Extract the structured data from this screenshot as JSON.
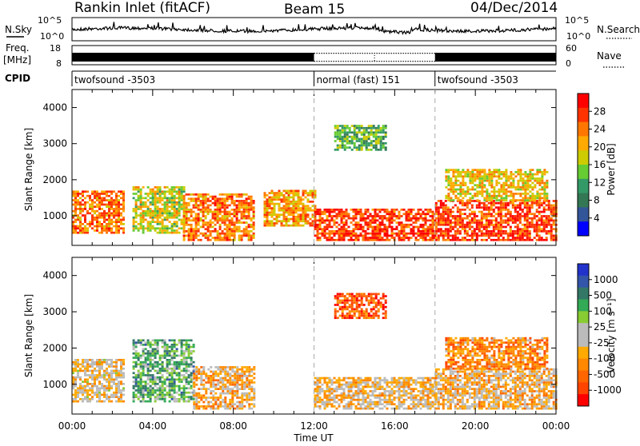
{
  "header": {
    "station": "Rankin Inlet (fitACF)",
    "beam": "Beam 15",
    "date": "04/Dec/2014"
  },
  "noise_panel": {
    "left_label": "N.Sky",
    "right_label": "N.Search",
    "left_ticks": [
      "10^5",
      "10^0"
    ],
    "right_ticks": [
      "10^5",
      "10^0"
    ]
  },
  "freq_panel": {
    "left_label_1": "Freq.",
    "left_label_2": "[MHz]",
    "left_ticks": [
      "18",
      "8"
    ],
    "right_label": "Nave",
    "right_ticks": [
      "60",
      "0"
    ]
  },
  "cpid_panel": {
    "label": "CPID",
    "segments": [
      {
        "label": "twofsound -3503",
        "start_hr": 0,
        "end_hr": 12
      },
      {
        "label": "normal (fast) 151",
        "start_hr": 12,
        "end_hr": 18
      },
      {
        "label": "twofsound -3503",
        "start_hr": 18,
        "end_hr": 24
      }
    ]
  },
  "power_panel": {
    "ylabel": "Slant Range [km]",
    "cbar_label": "Power [dB]",
    "cbar_ticks": [
      "28",
      "24",
      "20",
      "16",
      "12",
      "8",
      "4"
    ],
    "cbar_colors": [
      "#ff0000",
      "#ff3300",
      "#ff7700",
      "#ffaa00",
      "#cccc00",
      "#66cc33",
      "#339966",
      "#337755",
      "#335599",
      "#0000ff"
    ]
  },
  "velocity_panel": {
    "ylabel": "Slant Range [km]",
    "cbar_label": "Velocity [m s⁻¹]",
    "cbar_ticks": [
      "1000",
      "500",
      "100",
      "25",
      "-25",
      "-100",
      "-500",
      "-1000"
    ],
    "cbar_colors": [
      "#2233cc",
      "#3355aa",
      "#337766",
      "#33aa55",
      "#88cc33",
      "#bbbbbb",
      "#bbbbbb",
      "#ffaa00",
      "#ff8800",
      "#ff6600",
      "#ff4400",
      "#ff0000"
    ]
  },
  "axes": {
    "y_ticks": [
      "4000",
      "3000",
      "2000",
      "1000"
    ],
    "x_ticks": [
      "00:00",
      "04:00",
      "08:00",
      "12:00",
      "16:00",
      "20:00",
      "00:00"
    ],
    "xlabel": "Time UT"
  },
  "chart_data": {
    "type": "heatmap",
    "title": "Rankin Inlet (fitACF)",
    "subtitle": "Beam 15",
    "date": "04/Dec/2014",
    "xlabel": "Time UT",
    "ylabel": "Slant Range [km]",
    "xlim_hours": [
      0,
      24
    ],
    "ylim_km": [
      180,
      4500
    ],
    "grid": false,
    "panels": [
      {
        "name": "Power [dB]",
        "range": [
          0,
          30
        ],
        "regions": [
          {
            "t0": 0.0,
            "t1": 2.6,
            "r0": 500,
            "r1": 1700,
            "value": 24
          },
          {
            "t0": 3.0,
            "t1": 5.5,
            "r0": 500,
            "r1": 1800,
            "value": 18
          },
          {
            "t0": 5.5,
            "t1": 9.0,
            "r0": 300,
            "r1": 1600,
            "value": 24
          },
          {
            "t0": 9.5,
            "t1": 12.0,
            "r0": 700,
            "r1": 1700,
            "value": 22
          },
          {
            "t0": 12.0,
            "t1": 18.0,
            "r0": 300,
            "r1": 1200,
            "value": 27
          },
          {
            "t0": 13.0,
            "t1": 15.5,
            "r0": 2800,
            "r1": 3500,
            "value": 14
          },
          {
            "t0": 18.0,
            "t1": 24.0,
            "r0": 300,
            "r1": 1400,
            "value": 27
          },
          {
            "t0": 18.5,
            "t1": 23.5,
            "r0": 1400,
            "r1": 2300,
            "value": 20
          }
        ]
      },
      {
        "name": "Velocity [m s-1]",
        "range": [
          -1000,
          1000
        ],
        "regions": [
          {
            "t0": 0.0,
            "t1": 2.6,
            "r0": 500,
            "r1": 1700,
            "value": -150
          },
          {
            "t0": 3.0,
            "t1": 6.0,
            "r0": 500,
            "r1": 2200,
            "value": 400
          },
          {
            "t0": 6.0,
            "t1": 9.0,
            "r0": 300,
            "r1": 1500,
            "value": -300
          },
          {
            "t0": 12.0,
            "t1": 18.0,
            "r0": 300,
            "r1": 1200,
            "value": -200
          },
          {
            "t0": 13.0,
            "t1": 15.5,
            "r0": 2800,
            "r1": 3500,
            "value": -700
          },
          {
            "t0": 18.0,
            "t1": 24.0,
            "r0": 300,
            "r1": 1400,
            "value": -250
          },
          {
            "t0": 18.5,
            "t1": 23.5,
            "r0": 1400,
            "r1": 2300,
            "value": -500
          }
        ]
      }
    ]
  }
}
